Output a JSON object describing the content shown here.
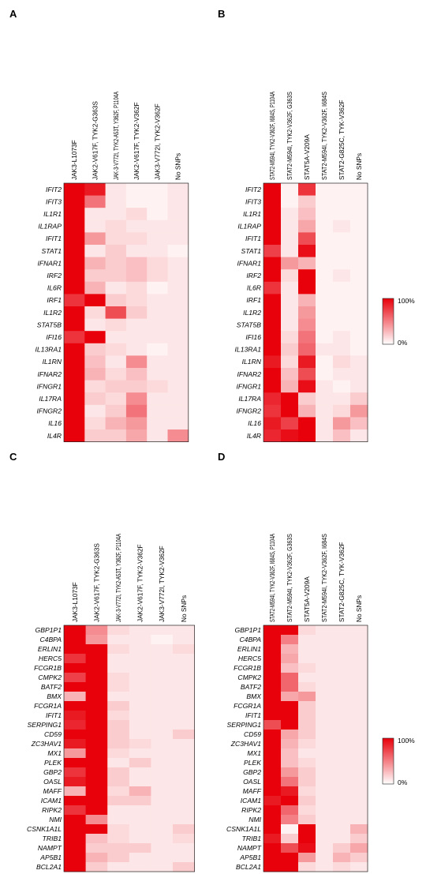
{
  "chart_data": [
    {
      "type": "heatmap",
      "panel": "A",
      "columns": [
        "JAK3-L1073F",
        "JAK2-V617F, TYK2-G363S",
        "JAK-3-V772I, TYK2-A53T, Y362F, P1104A",
        "JAK2-V617F, TYK2-V362F",
        "JAK3-V772I, TYK2-V362F",
        "No SNPs"
      ],
      "rows": [
        "IFIT2",
        "IFIT3",
        "IL1R1",
        "IL1RAP",
        "IFIT1",
        "STAT1",
        "IFNAR1",
        "IRF2",
        "IL6R",
        "IRF1",
        "IL1R2",
        "STAT5B",
        "IFI16",
        "IL13RA1",
        "IL1RN",
        "IFNAR2",
        "IFNGR1",
        "IL17RA",
        "IFNGR2",
        "IL16",
        "IL4R"
      ],
      "values": [
        [
          100,
          90,
          10,
          5,
          5,
          10
        ],
        [
          100,
          55,
          10,
          5,
          5,
          10
        ],
        [
          100,
          10,
          10,
          15,
          5,
          10
        ],
        [
          100,
          10,
          15,
          10,
          10,
          10
        ],
        [
          100,
          40,
          15,
          15,
          10,
          10
        ],
        [
          100,
          10,
          20,
          10,
          10,
          5
        ],
        [
          100,
          30,
          20,
          25,
          15,
          10
        ],
        [
          100,
          20,
          20,
          25,
          15,
          10
        ],
        [
          100,
          30,
          10,
          15,
          5,
          10
        ],
        [
          80,
          100,
          20,
          15,
          10,
          10
        ],
        [
          100,
          15,
          70,
          20,
          10,
          10
        ],
        [
          100,
          10,
          15,
          10,
          10,
          10
        ],
        [
          80,
          100,
          10,
          10,
          10,
          10
        ],
        [
          100,
          20,
          15,
          10,
          5,
          10
        ],
        [
          100,
          25,
          10,
          45,
          10,
          10
        ],
        [
          100,
          30,
          15,
          25,
          10,
          10
        ],
        [
          100,
          15,
          20,
          20,
          15,
          10
        ],
        [
          100,
          20,
          15,
          45,
          10,
          10
        ],
        [
          100,
          10,
          20,
          55,
          10,
          10
        ],
        [
          100,
          15,
          30,
          40,
          10,
          10
        ],
        [
          100,
          20,
          20,
          35,
          10,
          45
        ]
      ]
    },
    {
      "type": "heatmap",
      "panel": "B",
      "columns": [
        "STAT2-M594I, TYK2-V362F, I684S, P1104A",
        "STAT2-M594I, TYK2-V362F, G363S",
        "STAT5A-V209A",
        "STAT2-M594I, TYK2-V362F, I684S",
        "STAT2-G825C, TYK-V362F",
        "No SNPs"
      ],
      "rows": [
        "IFIT2",
        "IFIT3",
        "IL1R1",
        "IL1RAP",
        "IFIT1",
        "STAT1",
        "IFNAR1",
        "IRF2",
        "IL6R",
        "IRF1",
        "IL1R2",
        "STAT5B",
        "IFI16",
        "IL13RA1",
        "IL1RN",
        "IFNAR2",
        "IFNGR1",
        "IL17RA",
        "IFNGR2",
        "IL16",
        "IL4R"
      ],
      "values": [
        [
          100,
          5,
          80,
          5,
          5,
          5
        ],
        [
          100,
          5,
          20,
          5,
          5,
          5
        ],
        [
          100,
          10,
          25,
          5,
          5,
          5
        ],
        [
          100,
          10,
          35,
          5,
          10,
          5
        ],
        [
          100,
          10,
          70,
          5,
          5,
          5
        ],
        [
          75,
          10,
          95,
          5,
          5,
          5
        ],
        [
          100,
          40,
          30,
          5,
          5,
          5
        ],
        [
          100,
          15,
          100,
          5,
          10,
          5
        ],
        [
          80,
          10,
          100,
          5,
          5,
          5
        ],
        [
          100,
          10,
          30,
          5,
          5,
          5
        ],
        [
          100,
          10,
          40,
          5,
          5,
          5
        ],
        [
          100,
          10,
          45,
          5,
          5,
          5
        ],
        [
          100,
          15,
          55,
          5,
          10,
          5
        ],
        [
          100,
          20,
          60,
          10,
          10,
          5
        ],
        [
          90,
          15,
          90,
          5,
          15,
          10
        ],
        [
          100,
          25,
          70,
          5,
          10,
          10
        ],
        [
          100,
          30,
          95,
          10,
          5,
          10
        ],
        [
          85,
          100,
          20,
          10,
          10,
          20
        ],
        [
          80,
          100,
          30,
          10,
          15,
          40
        ],
        [
          90,
          75,
          100,
          10,
          40,
          25
        ],
        [
          85,
          95,
          100,
          10,
          25,
          10
        ]
      ]
    },
    {
      "type": "heatmap",
      "panel": "C",
      "columns": [
        "JAK3-L1073F",
        "JAK2-V617F, TYK2-G363S",
        "JAK-3-V772I, TYK2-A53T, Y362F, P1104A",
        "JAK2-V617F, TYK2-V362F",
        "JAK3-V772I, TYK2-V362F",
        "No SNPs"
      ],
      "rows": [
        "GBP1P1",
        "C4BPA",
        "ERLIN1",
        "HERC5",
        "FCGR1B",
        "CMPK2",
        "BATF2",
        "BMX",
        "FCGR1A",
        "IFIT1",
        "SERPING1",
        "CD59",
        "ZC3HAV1",
        "MX1",
        "PLEK",
        "GBP2",
        "OASL",
        "MAFF",
        "ICAM1",
        "RIPK2",
        "NMI",
        "CSNK1A1L",
        "TRIB1",
        "NAMPT",
        "AP5B1",
        "BCL2A1"
      ],
      "values": [
        [
          100,
          45,
          15,
          10,
          10,
          10
        ],
        [
          100,
          40,
          10,
          10,
          5,
          10
        ],
        [
          100,
          100,
          15,
          10,
          10,
          15
        ],
        [
          80,
          100,
          10,
          10,
          10,
          10
        ],
        [
          100,
          100,
          10,
          10,
          10,
          10
        ],
        [
          75,
          100,
          15,
          10,
          10,
          10
        ],
        [
          100,
          100,
          15,
          10,
          10,
          10
        ],
        [
          30,
          100,
          10,
          10,
          10,
          10
        ],
        [
          100,
          100,
          20,
          10,
          10,
          10
        ],
        [
          90,
          100,
          15,
          10,
          10,
          10
        ],
        [
          85,
          100,
          20,
          10,
          10,
          10
        ],
        [
          100,
          100,
          20,
          10,
          10,
          20
        ],
        [
          90,
          100,
          20,
          15,
          10,
          10
        ],
        [
          40,
          100,
          15,
          10,
          10,
          10
        ],
        [
          100,
          100,
          10,
          20,
          10,
          10
        ],
        [
          80,
          100,
          20,
          10,
          10,
          10
        ],
        [
          90,
          100,
          20,
          10,
          10,
          10
        ],
        [
          30,
          100,
          15,
          30,
          10,
          10
        ],
        [
          100,
          100,
          20,
          20,
          10,
          10
        ],
        [
          80,
          100,
          10,
          10,
          10,
          10
        ],
        [
          100,
          45,
          10,
          10,
          10,
          10
        ],
        [
          100,
          100,
          15,
          10,
          10,
          20
        ],
        [
          100,
          25,
          15,
          10,
          10,
          15
        ],
        [
          100,
          20,
          20,
          20,
          10,
          10
        ],
        [
          100,
          30,
          20,
          10,
          10,
          10
        ],
        [
          100,
          20,
          10,
          10,
          10,
          20
        ]
      ]
    },
    {
      "type": "heatmap",
      "panel": "D",
      "columns": [
        "STAT2-M594I, TYK2-V362F, I684S, P1104A",
        "STAT2-M594I, TYK2-V362F, G363S",
        "STAT5A-V209A",
        "STAT2-M594I, TYK2-V362F, I684S",
        "STAT2-G825C, TYK-V362F",
        "No SNPs"
      ],
      "rows": [
        "GBP1P1",
        "C4BPA",
        "ERLIN1",
        "HERC5",
        "FCGR1B",
        "CMPK2",
        "BATF2",
        "BMX",
        "FCGR1A",
        "IFIT1",
        "SERPING1",
        "CD59",
        "ZC3HAV1",
        "MX1",
        "PLEK",
        "GBP2",
        "OASL",
        "MAFF",
        "ICAM1",
        "RIPK2",
        "NMI",
        "CSNK1A1L",
        "TRIB1",
        "NAMPT",
        "AP5B1",
        "BCL2A1"
      ],
      "values": [
        [
          100,
          100,
          15,
          10,
          10,
          10
        ],
        [
          100,
          50,
          10,
          10,
          10,
          10
        ],
        [
          100,
          30,
          10,
          10,
          10,
          10
        ],
        [
          100,
          35,
          10,
          10,
          10,
          10
        ],
        [
          100,
          25,
          15,
          10,
          10,
          10
        ],
        [
          100,
          60,
          10,
          10,
          10,
          10
        ],
        [
          100,
          60,
          15,
          10,
          10,
          10
        ],
        [
          100,
          35,
          40,
          10,
          10,
          10
        ],
        [
          100,
          100,
          20,
          10,
          10,
          10
        ],
        [
          100,
          100,
          20,
          10,
          10,
          10
        ],
        [
          70,
          100,
          20,
          10,
          10,
          10
        ],
        [
          100,
          35,
          20,
          10,
          10,
          10
        ],
        [
          100,
          30,
          15,
          10,
          10,
          10
        ],
        [
          100,
          25,
          10,
          10,
          10,
          10
        ],
        [
          100,
          25,
          15,
          10,
          10,
          10
        ],
        [
          100,
          40,
          20,
          10,
          10,
          10
        ],
        [
          100,
          55,
          20,
          10,
          10,
          10
        ],
        [
          100,
          90,
          15,
          10,
          10,
          10
        ],
        [
          90,
          100,
          20,
          10,
          10,
          10
        ],
        [
          100,
          60,
          15,
          10,
          10,
          10
        ],
        [
          100,
          50,
          20,
          10,
          10,
          10
        ],
        [
          100,
          5,
          100,
          10,
          10,
          30
        ],
        [
          90,
          20,
          100,
          10,
          10,
          20
        ],
        [
          100,
          70,
          95,
          10,
          20,
          35
        ],
        [
          100,
          100,
          40,
          10,
          30,
          20
        ],
        [
          100,
          100,
          15,
          10,
          15,
          10
        ]
      ]
    }
  ],
  "legend": {
    "max_label": "100%",
    "min_label": "0%",
    "max_color": "#e8000b",
    "min_color": "#ffffff"
  }
}
